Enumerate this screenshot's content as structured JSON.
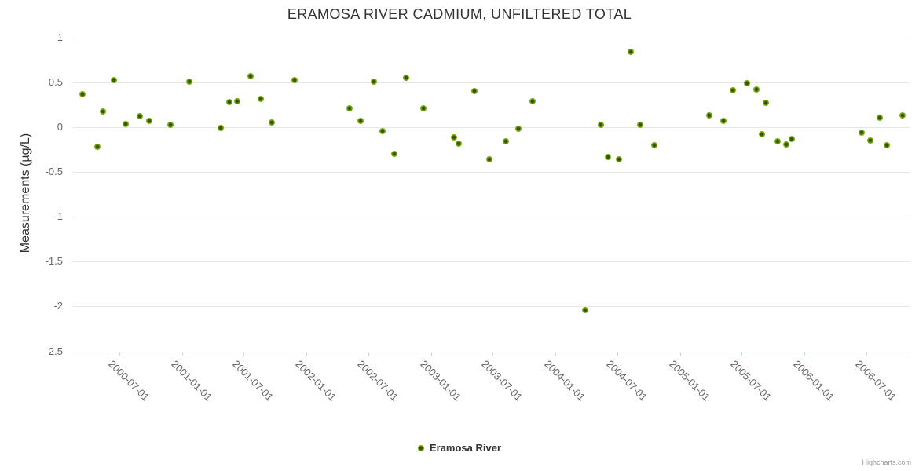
{
  "chart_data": {
    "type": "scatter",
    "title": "ERAMOSA RIVER CADMIUM, UNFILTERED TOTAL",
    "xlabel": "",
    "ylabel": "Measurements (µg/L)",
    "xlim": [
      "2000-02-14",
      "2006-11-05"
    ],
    "ylim": [
      -2.5,
      1
    ],
    "y_ticks": [
      {
        "value": 1,
        "label": "1"
      },
      {
        "value": 0.5,
        "label": "0.5"
      },
      {
        "value": 0,
        "label": "0"
      },
      {
        "value": -0.5,
        "label": "-0.5"
      },
      {
        "value": -1,
        "label": "-1"
      },
      {
        "value": -1.5,
        "label": "-1.5"
      },
      {
        "value": -2,
        "label": "-2"
      },
      {
        "value": -2.5,
        "label": "-2.5"
      }
    ],
    "x_ticks": [
      "2000-07-01",
      "2001-01-01",
      "2001-07-01",
      "2002-01-01",
      "2002-07-01",
      "2003-01-01",
      "2003-07-01",
      "2004-01-01",
      "2004-07-01",
      "2005-01-01",
      "2005-07-01",
      "2006-01-01",
      "2006-07-01"
    ],
    "grid": "horizontal-only",
    "legend_position": "bottom-center",
    "series": [
      {
        "name": "Eramosa River",
        "points": [
          [
            "2000-03-15",
            0.37
          ],
          [
            "2000-04-27",
            -0.22
          ],
          [
            "2000-05-14",
            0.18
          ],
          [
            "2000-06-15",
            0.53
          ],
          [
            "2000-07-19",
            0.04
          ],
          [
            "2000-08-30",
            0.12
          ],
          [
            "2000-09-27",
            0.07
          ],
          [
            "2000-11-28",
            0.03
          ],
          [
            "2001-01-22",
            0.51
          ],
          [
            "2001-04-24",
            -0.01
          ],
          [
            "2001-05-20",
            0.28
          ],
          [
            "2001-06-12",
            0.29
          ],
          [
            "2001-07-21",
            0.57
          ],
          [
            "2001-08-20",
            0.32
          ],
          [
            "2001-09-21",
            0.05
          ],
          [
            "2001-11-27",
            0.53
          ],
          [
            "2002-05-07",
            0.21
          ],
          [
            "2002-06-08",
            0.07
          ],
          [
            "2002-07-18",
            0.51
          ],
          [
            "2002-08-12",
            -0.04
          ],
          [
            "2002-09-16",
            -0.3
          ],
          [
            "2002-10-20",
            0.55
          ],
          [
            "2002-12-10",
            0.21
          ],
          [
            "2003-03-10",
            -0.11
          ],
          [
            "2003-03-24",
            -0.18
          ],
          [
            "2003-05-09",
            0.4
          ],
          [
            "2003-06-22",
            -0.36
          ],
          [
            "2003-08-09",
            -0.16
          ],
          [
            "2003-09-15",
            -0.02
          ],
          [
            "2003-10-26",
            0.29
          ],
          [
            "2004-03-28",
            -2.04
          ],
          [
            "2004-05-14",
            0.03
          ],
          [
            "2004-06-04",
            -0.33
          ],
          [
            "2004-07-06",
            -0.36
          ],
          [
            "2004-08-10",
            0.84
          ],
          [
            "2004-09-06",
            0.03
          ],
          [
            "2004-10-18",
            -0.2
          ],
          [
            "2005-03-28",
            0.13
          ],
          [
            "2005-05-08",
            0.07
          ],
          [
            "2005-06-05",
            0.41
          ],
          [
            "2005-07-16",
            0.49
          ],
          [
            "2005-08-13",
            0.42
          ],
          [
            "2005-08-29",
            -0.08
          ],
          [
            "2005-09-09",
            0.27
          ],
          [
            "2005-10-14",
            -0.16
          ],
          [
            "2005-11-08",
            -0.19
          ],
          [
            "2005-11-24",
            -0.13
          ],
          [
            "2006-06-17",
            -0.06
          ],
          [
            "2006-07-13",
            -0.15
          ],
          [
            "2006-08-10",
            0.11
          ],
          [
            "2006-08-30",
            -0.2
          ],
          [
            "2006-10-16",
            0.13
          ]
        ]
      }
    ]
  },
  "legend": {
    "label": "Eramosa River"
  },
  "credits": {
    "label": "Highcharts.com"
  },
  "colors": {
    "marker_outer": "#7cb90e",
    "marker_inner": "#33500a",
    "gridline": "#e6e6e6",
    "axis_line": "#ccd6eb",
    "title_text": "#333333",
    "axis_label_text": "#666666",
    "credits_text": "#999999"
  }
}
